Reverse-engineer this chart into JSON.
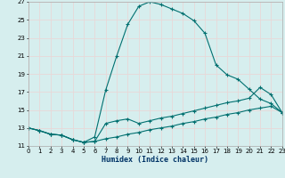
{
  "xlabel": "Humidex (Indice chaleur)",
  "xlim": [
    0,
    23
  ],
  "ylim": [
    11,
    27
  ],
  "yticks": [
    11,
    13,
    15,
    17,
    19,
    21,
    23,
    25,
    27
  ],
  "xticks": [
    0,
    1,
    2,
    3,
    4,
    5,
    6,
    7,
    8,
    9,
    10,
    11,
    12,
    13,
    14,
    15,
    16,
    17,
    18,
    19,
    20,
    21,
    22,
    23
  ],
  "bg_color": "#d6eeee",
  "grid_color": "#e8d8d8",
  "line_color": "#007070",
  "line1_x": [
    0,
    1,
    2,
    3,
    4,
    5,
    6,
    7,
    8,
    9,
    10,
    11,
    12,
    13,
    14,
    15,
    16,
    17,
    18,
    19,
    20,
    21,
    22,
    23
  ],
  "line1_y": [
    13,
    12.7,
    12.3,
    12.2,
    11.7,
    11.4,
    12.0,
    17.2,
    21.0,
    24.5,
    26.5,
    27.0,
    26.7,
    26.2,
    25.7,
    24.9,
    23.5,
    20.0,
    18.9,
    18.4,
    17.3,
    16.2,
    15.7,
    14.7
  ],
  "line2_x": [
    0,
    1,
    2,
    3,
    4,
    5,
    6,
    7,
    8,
    9,
    10,
    11,
    12,
    13,
    14,
    15,
    16,
    17,
    18,
    19,
    20,
    21,
    22,
    23
  ],
  "line2_y": [
    13,
    12.7,
    12.3,
    12.2,
    11.7,
    11.4,
    11.5,
    13.5,
    13.8,
    14.0,
    13.5,
    13.8,
    14.1,
    14.3,
    14.6,
    14.9,
    15.2,
    15.5,
    15.8,
    16.0,
    16.3,
    17.5,
    16.7,
    14.7
  ],
  "line3_x": [
    0,
    1,
    2,
    3,
    4,
    5,
    6,
    7,
    8,
    9,
    10,
    11,
    12,
    13,
    14,
    15,
    16,
    17,
    18,
    19,
    20,
    21,
    22,
    23
  ],
  "line3_y": [
    13,
    12.7,
    12.3,
    12.2,
    11.7,
    11.4,
    11.5,
    11.8,
    12.0,
    12.3,
    12.5,
    12.8,
    13.0,
    13.2,
    13.5,
    13.7,
    14.0,
    14.2,
    14.5,
    14.7,
    15.0,
    15.2,
    15.4,
    14.7
  ],
  "marker_size": 2.5,
  "line_width": 0.8
}
